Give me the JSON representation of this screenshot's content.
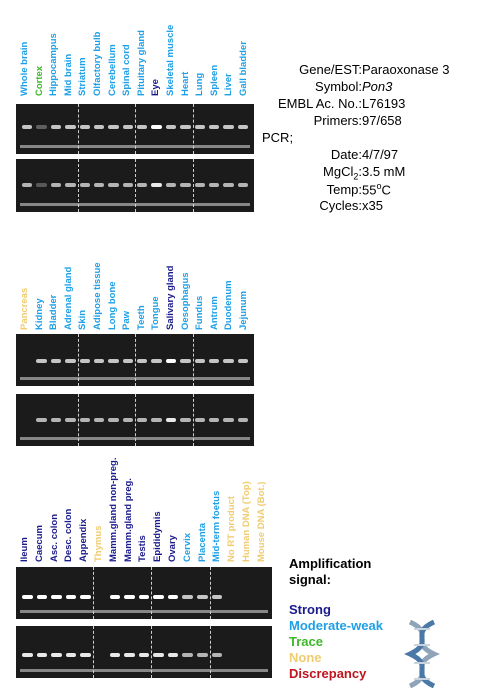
{
  "colors": {
    "strong": "#1a1a8c",
    "moderate": "#1ea0e6",
    "trace": "#3cb828",
    "none": "#f0cc70",
    "discrepancy": "#c0141e"
  },
  "panel1": {
    "lanes": [
      {
        "label": "Whole brain",
        "level": "moderate"
      },
      {
        "label": "Cortex",
        "level": "trace"
      },
      {
        "label": "Hippocampus",
        "level": "moderate"
      },
      {
        "label": "Mid brain",
        "level": "moderate"
      },
      {
        "label": "Striatum",
        "level": "moderate"
      },
      {
        "label": "Olfactory bulb",
        "level": "moderate"
      },
      {
        "label": "Cerebellum",
        "level": "moderate"
      },
      {
        "label": "Spinal cord",
        "level": "moderate"
      },
      {
        "label": "Pituitary gland",
        "level": "moderate"
      },
      {
        "label": "Eye",
        "level": "strong"
      },
      {
        "label": "Skeletal muscle",
        "level": "moderate"
      },
      {
        "label": "Heart",
        "level": "moderate"
      },
      {
        "label": "Lung",
        "level": "moderate"
      },
      {
        "label": "Spleen",
        "level": "moderate"
      },
      {
        "label": "Liver",
        "level": "moderate"
      },
      {
        "label": "Gall bladder",
        "level": "moderate"
      }
    ]
  },
  "panel2": {
    "lanes": [
      {
        "label": "Pancreas",
        "level": "none"
      },
      {
        "label": "Kidney",
        "level": "moderate"
      },
      {
        "label": "Bladder",
        "level": "moderate"
      },
      {
        "label": "Adrenal gland",
        "level": "moderate"
      },
      {
        "label": "Skin",
        "level": "moderate"
      },
      {
        "label": "Adipose tissue",
        "level": "moderate"
      },
      {
        "label": "Long bone",
        "level": "moderate"
      },
      {
        "label": "Paw",
        "level": "moderate"
      },
      {
        "label": "Teeth",
        "level": "moderate"
      },
      {
        "label": "Tongue",
        "level": "moderate"
      },
      {
        "label": "Salivary gland",
        "level": "strong"
      },
      {
        "label": "Oesophagus",
        "level": "moderate"
      },
      {
        "label": "Fundus",
        "level": "moderate"
      },
      {
        "label": "Antrum",
        "level": "moderate"
      },
      {
        "label": "Duodenum",
        "level": "moderate"
      },
      {
        "label": "Jejunum",
        "level": "moderate"
      }
    ]
  },
  "panel3": {
    "lanes": [
      {
        "label": "Ileum",
        "level": "strong"
      },
      {
        "label": "Caecum",
        "level": "strong"
      },
      {
        "label": "Asc. colon",
        "level": "strong"
      },
      {
        "label": "Desc. colon",
        "level": "strong"
      },
      {
        "label": "Appendix",
        "level": "strong"
      },
      {
        "label": "Thymus",
        "level": "none"
      },
      {
        "label": "Mamm.gland non-preg.",
        "level": "strong"
      },
      {
        "label": "Mamm.gland preg.",
        "level": "strong"
      },
      {
        "label": "Testis",
        "level": "strong"
      },
      {
        "label": "Epididymis",
        "level": "strong"
      },
      {
        "label": "Ovary",
        "level": "strong"
      },
      {
        "label": "Cervix",
        "level": "moderate"
      },
      {
        "label": "Placenta",
        "level": "moderate"
      },
      {
        "label": "Mid-term foetus",
        "level": "moderate"
      },
      {
        "label": "No RT product",
        "level": "none"
      },
      {
        "label": "Human DNA (Top)",
        "level": "none"
      },
      {
        "label": "Mouse DNA (Bot.)",
        "level": "none"
      }
    ]
  },
  "info": {
    "gene_label": "Gene/EST:",
    "gene_value": "Paraoxonase 3",
    "symbol_label": "Symbol:",
    "symbol_value": "Pon3",
    "embl_label": "EMBL Ac. No.:",
    "embl_value": "L76193",
    "primers_label": "Primers:",
    "primers_value": "97/658",
    "pcr_label": "PCR;",
    "date_label": "Date:",
    "date_value": "4/7/97",
    "mgcl_label": "MgCl",
    "mgcl_sub": "2",
    "mgcl_colon": ":",
    "mgcl_value": "3.5 mM",
    "temp_label": "Temp:",
    "temp_value": "55",
    "temp_sup": "o",
    "temp_unit": "C",
    "cycles_label": "Cycles:",
    "cycles_value": "x35"
  },
  "legend": {
    "title_line1": "Amplification",
    "title_line2": "signal:",
    "strong": "Strong",
    "moderate": "Moderate-weak",
    "trace": "Trace",
    "none": "None",
    "discrepancy": "Discrepancy"
  }
}
